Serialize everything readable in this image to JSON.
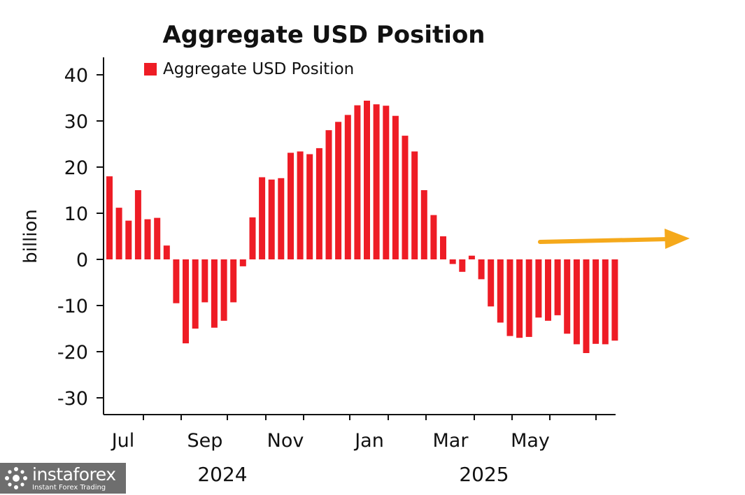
{
  "chart_data": {
    "type": "bar",
    "title": "Aggregate USD Position",
    "ylabel": "billion",
    "xlabel": "",
    "ylim": [
      -33,
      44
    ],
    "yticks": [
      40,
      30,
      20,
      10,
      0,
      -10,
      -20,
      -30
    ],
    "ytick_labels": [
      "40",
      "30",
      "20",
      "10",
      "0",
      "-10",
      "-20",
      "-30"
    ],
    "x_month_labels": [
      "Jul",
      "Sep",
      "Nov",
      "Jan",
      "Mar",
      "May"
    ],
    "x_year_labels": [
      "2024",
      "2025"
    ],
    "legend": {
      "entries": [
        "Aggregate USD Position"
      ],
      "position": "top-left"
    },
    "series": [
      {
        "name": "Aggregate USD Position",
        "color": "#ee1c25",
        "values": [
          18.0,
          11.2,
          8.4,
          15.0,
          8.7,
          9.0,
          3.0,
          -9.5,
          -18.2,
          -15.0,
          -9.3,
          -14.8,
          -13.3,
          -9.3,
          -1.5,
          9.1,
          17.8,
          17.3,
          17.6,
          23.1,
          23.4,
          22.8,
          24.1,
          28.0,
          29.8,
          31.3,
          33.4,
          34.4,
          33.6,
          33.3,
          31.1,
          26.8,
          23.4,
          15.0,
          9.6,
          5.0,
          -1.0,
          -2.7,
          0.8,
          -4.3,
          -10.2,
          -13.7,
          -16.6,
          -17.0,
          -16.8,
          -12.6,
          -13.3,
          -12.1,
          -16.1,
          -18.4,
          -20.3,
          -18.3,
          -18.4,
          -17.6
        ]
      }
    ],
    "annotation": {
      "shape": "arrow",
      "color": "#f5a91b",
      "direction": "right"
    }
  },
  "watermark": {
    "brand": "instaforex",
    "tagline": "Instant Forex Trading"
  }
}
